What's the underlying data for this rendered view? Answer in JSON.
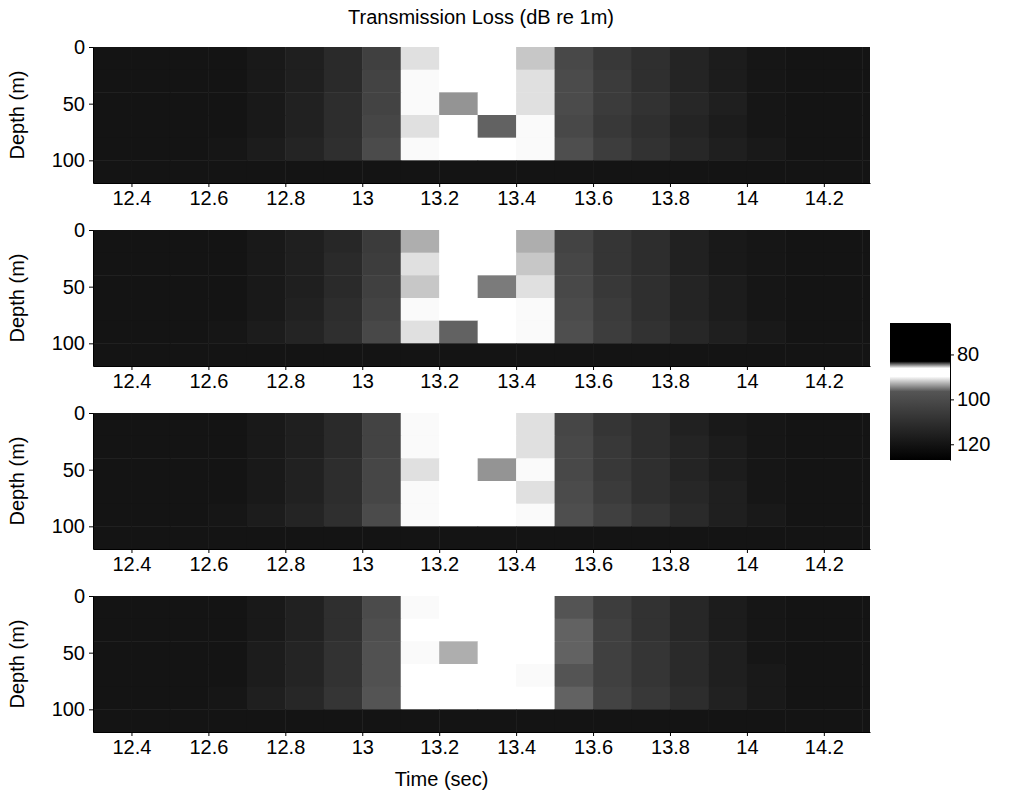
{
  "chart_data": {
    "type": "heatmap",
    "title": "Transmission Loss (dB re 1m)",
    "xlabel": "Time (sec)",
    "ylabel": "Depth (m)",
    "xlim": [
      12.3,
      14.32
    ],
    "xticks": [
      12.4,
      12.6,
      12.8,
      13,
      13.2,
      13.4,
      13.6,
      13.8,
      14,
      14.2
    ],
    "ylim": [
      0,
      120
    ],
    "yticks": [
      0,
      50,
      100
    ],
    "x_edges": [
      12.3,
      12.4,
      12.5,
      12.6,
      12.7,
      12.8,
      12.9,
      13.0,
      13.1,
      13.2,
      13.3,
      13.4,
      13.5,
      13.6,
      13.7,
      13.8,
      13.9,
      14.0,
      14.1,
      14.2,
      14.3,
      14.4
    ],
    "y_edges": [
      0,
      20,
      40,
      60,
      80,
      100,
      120
    ],
    "panels": [
      {
        "values": [
          [
            120,
            120,
            120,
            120,
            118,
            116,
            112,
            104,
            91,
            89,
            88,
            92,
            101,
            107,
            110,
            114,
            117,
            119,
            120,
            120,
            120
          ],
          [
            120,
            120,
            120,
            120,
            118,
            116,
            112,
            103,
            90,
            88,
            89,
            91,
            100,
            106,
            110,
            114,
            117,
            119,
            120,
            120,
            120
          ],
          [
            120,
            120,
            120,
            120,
            118,
            115,
            111,
            103,
            90,
            94,
            88,
            91,
            100,
            106,
            109,
            113,
            116,
            119,
            120,
            120,
            120
          ],
          [
            120,
            120,
            120,
            120,
            118,
            115,
            111,
            102,
            91,
            89,
            96,
            90,
            101,
            107,
            110,
            114,
            117,
            119,
            120,
            120,
            120
          ],
          [
            120,
            120,
            120,
            119,
            117,
            114,
            110,
            100,
            90,
            88,
            89,
            90,
            99,
            105,
            109,
            113,
            116,
            118,
            120,
            120,
            120
          ],
          [
            120,
            120,
            120,
            120,
            120,
            120,
            120,
            120,
            120,
            120,
            120,
            120,
            120,
            120,
            120,
            120,
            120,
            120,
            120,
            120,
            120
          ]
        ]
      },
      {
        "values": [
          [
            120,
            120,
            120,
            120,
            118,
            116,
            113,
            106,
            93,
            89,
            88,
            93,
            103,
            108,
            111,
            115,
            118,
            119,
            120,
            120,
            120
          ],
          [
            120,
            120,
            120,
            120,
            118,
            116,
            112,
            105,
            91,
            88,
            89,
            92,
            102,
            108,
            111,
            115,
            118,
            119,
            120,
            120,
            120
          ],
          [
            120,
            120,
            120,
            120,
            118,
            116,
            112,
            104,
            92,
            89,
            95,
            91,
            101,
            107,
            110,
            114,
            117,
            119,
            120,
            120,
            120
          ],
          [
            120,
            120,
            120,
            120,
            118,
            115,
            111,
            103,
            90,
            88,
            89,
            90,
            100,
            106,
            110,
            114,
            117,
            119,
            120,
            120,
            120
          ],
          [
            120,
            120,
            120,
            119,
            117,
            114,
            110,
            101,
            91,
            96,
            88,
            90,
            99,
            105,
            109,
            113,
            116,
            118,
            120,
            120,
            120
          ],
          [
            120,
            120,
            120,
            120,
            120,
            120,
            120,
            120,
            120,
            120,
            120,
            120,
            120,
            120,
            120,
            120,
            120,
            120,
            120,
            120,
            120
          ]
        ]
      },
      {
        "values": [
          [
            120,
            120,
            120,
            120,
            118,
            116,
            112,
            103,
            90,
            88,
            89,
            91,
            102,
            108,
            111,
            115,
            118,
            119,
            120,
            120,
            120
          ],
          [
            120,
            120,
            120,
            120,
            118,
            116,
            112,
            103,
            90,
            89,
            88,
            91,
            101,
            107,
            111,
            114,
            117,
            119,
            120,
            120,
            120
          ],
          [
            120,
            120,
            120,
            120,
            118,
            115,
            111,
            102,
            91,
            88,
            94,
            90,
            101,
            107,
            110,
            114,
            117,
            119,
            120,
            120,
            120
          ],
          [
            120,
            120,
            120,
            120,
            118,
            115,
            111,
            102,
            90,
            89,
            88,
            91,
            100,
            106,
            110,
            113,
            116,
            119,
            120,
            120,
            120
          ],
          [
            120,
            120,
            120,
            119,
            117,
            114,
            110,
            100,
            90,
            88,
            89,
            90,
            99,
            104,
            108,
            112,
            116,
            118,
            120,
            120,
            120
          ],
          [
            120,
            120,
            120,
            120,
            120,
            120,
            120,
            120,
            120,
            120,
            120,
            120,
            120,
            120,
            120,
            120,
            120,
            120,
            120,
            120,
            120
          ]
        ]
      },
      {
        "values": [
          [
            120,
            120,
            120,
            120,
            118,
            115,
            110,
            100,
            90,
            88,
            88,
            89,
            97,
            105,
            109,
            113,
            117,
            119,
            120,
            120,
            120
          ],
          [
            120,
            120,
            120,
            120,
            118,
            115,
            110,
            99,
            89,
            88,
            89,
            89,
            96,
            104,
            109,
            113,
            117,
            119,
            120,
            120,
            120
          ],
          [
            120,
            120,
            120,
            120,
            117,
            114,
            109,
            98,
            90,
            93,
            88,
            89,
            96,
            104,
            108,
            112,
            116,
            119,
            120,
            120,
            120
          ],
          [
            120,
            120,
            120,
            120,
            117,
            114,
            109,
            98,
            89,
            88,
            89,
            90,
            97,
            104,
            108,
            112,
            116,
            118,
            120,
            120,
            120
          ],
          [
            120,
            120,
            120,
            119,
            116,
            113,
            108,
            97,
            89,
            88,
            88,
            89,
            96,
            103,
            107,
            111,
            115,
            118,
            120,
            120,
            120
          ],
          [
            120,
            120,
            120,
            120,
            120,
            120,
            120,
            120,
            120,
            120,
            120,
            120,
            120,
            120,
            120,
            120,
            120,
            120,
            120,
            120,
            120
          ]
        ]
      }
    ],
    "colorbar": {
      "range": [
        66,
        127
      ],
      "ticks": [
        80,
        100,
        120
      ]
    }
  }
}
